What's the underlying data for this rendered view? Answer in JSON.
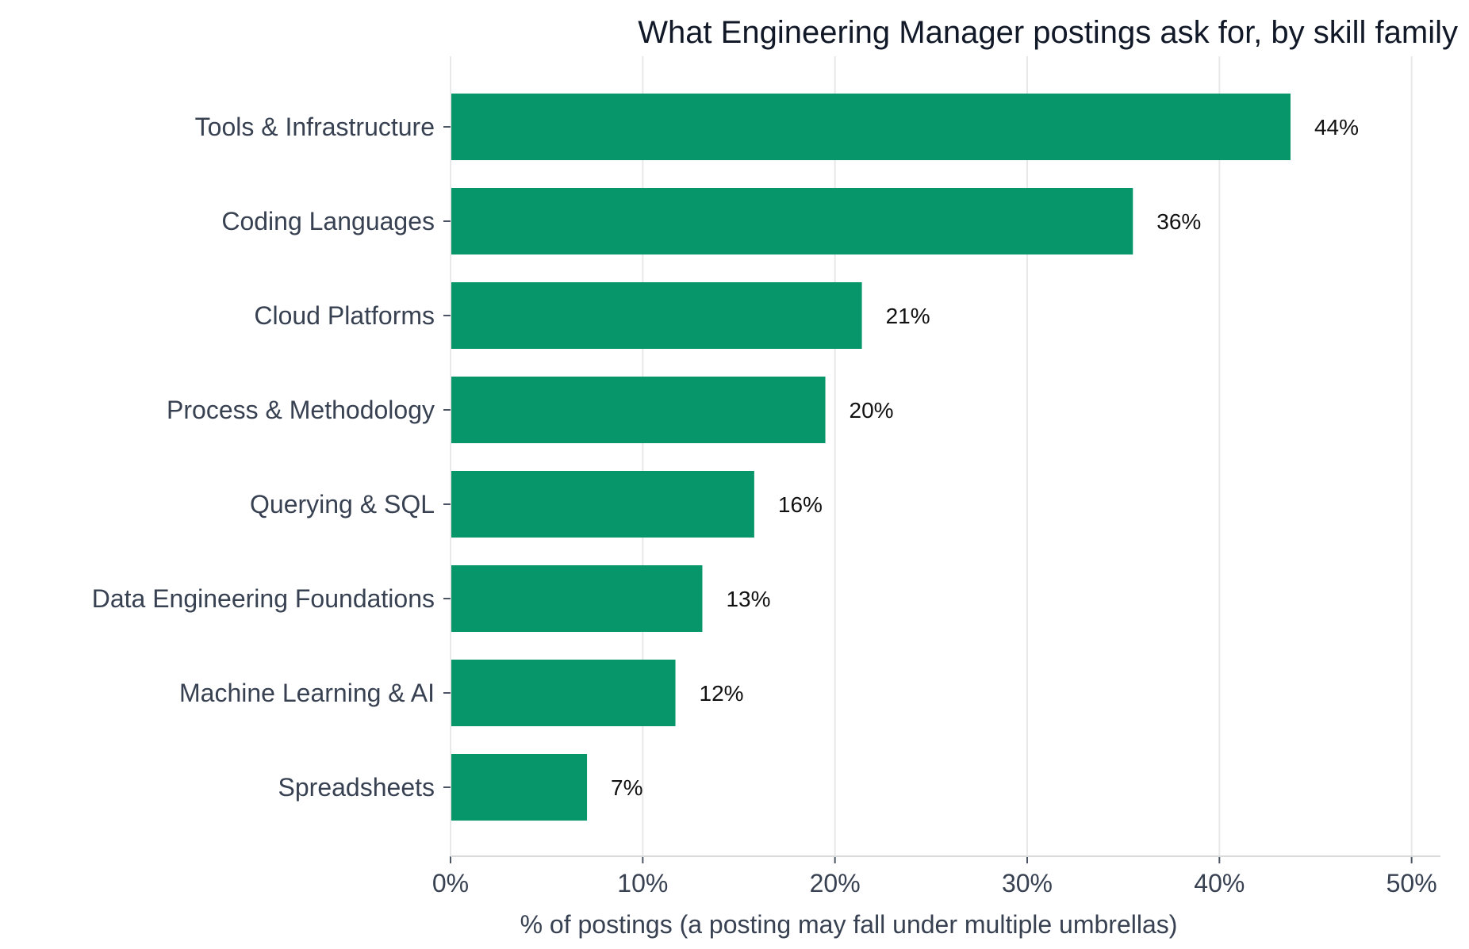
{
  "chart_data": {
    "type": "bar",
    "orientation": "horizontal",
    "title": "What Engineering Manager postings ask for, by skill family",
    "xlabel": "% of postings (a posting may fall under multiple umbrellas)",
    "ylabel": "",
    "categories": [
      "Tools & Infrastructure",
      "Coding Languages",
      "Cloud Platforms",
      "Process & Methodology",
      "Querying & SQL",
      "Data Engineering Foundations",
      "Machine Learning & AI",
      "Spreadsheets"
    ],
    "values": [
      43.7,
      35.5,
      21.4,
      19.5,
      15.8,
      13.1,
      11.7,
      7.1
    ],
    "data_labels": [
      "44%",
      "36%",
      "21%",
      "20%",
      "16%",
      "13%",
      "12%",
      "7%"
    ],
    "xlim": [
      0,
      51.5
    ],
    "xticks": [
      0,
      10,
      20,
      30,
      40,
      50
    ],
    "xtick_labels": [
      "0%",
      "10%",
      "20%",
      "30%",
      "40%",
      "50%"
    ],
    "bar_color": "#069669",
    "grid": "vertical",
    "legend": "none"
  }
}
